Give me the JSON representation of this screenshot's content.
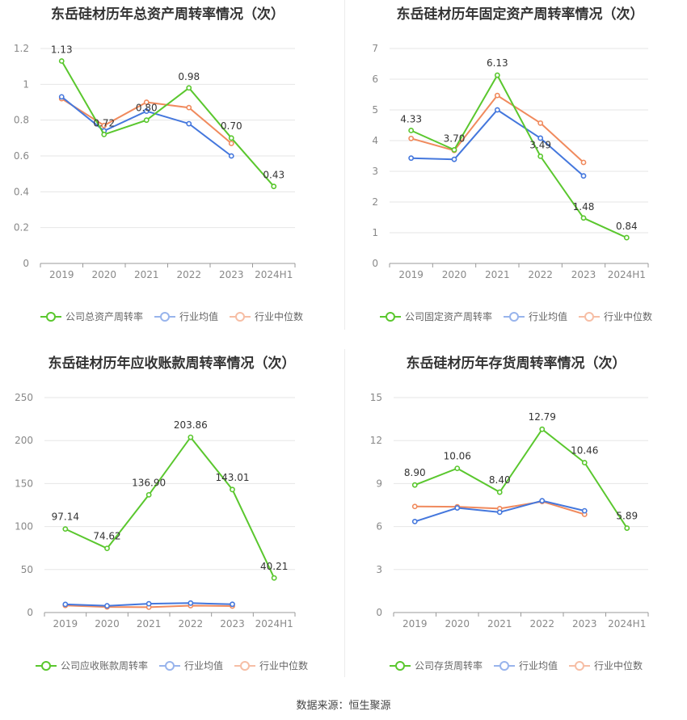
{
  "colors": {
    "company": "#5ac72e",
    "industry_avg": "#4477dd",
    "industry_median": "#f08a5d",
    "grid": "#e6e6e6",
    "axis_text": "#888888",
    "label_text": "#333333"
  },
  "source": "数据来源：恒生聚源",
  "panels": [
    {
      "title": "东岳硅材历年总资产周转率情况（次）",
      "legend": [
        "公司总资产周转率",
        "行业均值",
        "行业中位数"
      ]
    },
    {
      "title": "东岳硅材历年固定资产周转率情况（次）",
      "legend": [
        "公司固定资产周转率",
        "行业均值",
        "行业中位数"
      ]
    },
    {
      "title": "东岳硅材历年应收账款周转率情况（次）",
      "legend": [
        "公司应收账款周转率",
        "行业均值",
        "行业中位数"
      ]
    },
    {
      "title": "东岳硅材历年存货周转率情况（次）",
      "legend": [
        "公司存货周转率",
        "行业均值",
        "行业中位数"
      ]
    }
  ],
  "chart_data": [
    {
      "type": "line",
      "title": "东岳硅材历年总资产周转率情况（次）",
      "categories": [
        "2019",
        "2020",
        "2021",
        "2022",
        "2023",
        "2024H1"
      ],
      "ylim": [
        0,
        1.2
      ],
      "yticks": [
        "0",
        "0.2",
        "0.4",
        "0.6",
        "0.8",
        "1",
        "1.2"
      ],
      "ytick_values": [
        0,
        0.2,
        0.4,
        0.6,
        0.8,
        1.0,
        1.2
      ],
      "grid": true,
      "legend_position": "bottom",
      "series": [
        {
          "name": "公司总资产周转率",
          "values": [
            1.13,
            0.72,
            0.8,
            0.98,
            0.7,
            0.43
          ],
          "labels": [
            "1.13",
            "0.72",
            "0.80",
            "0.98",
            "0.70",
            "0.43"
          ]
        },
        {
          "name": "行业均值",
          "values": [
            0.93,
            0.74,
            0.85,
            0.78,
            0.6,
            null
          ]
        },
        {
          "name": "行业中位数",
          "values": [
            0.92,
            0.77,
            0.9,
            0.87,
            0.67,
            null
          ]
        }
      ]
    },
    {
      "type": "line",
      "title": "东岳硅材历年固定资产周转率情况（次）",
      "categories": [
        "2019",
        "2020",
        "2021",
        "2022",
        "2023",
        "2024H1"
      ],
      "ylim": [
        0,
        7
      ],
      "yticks": [
        "0",
        "1",
        "2",
        "3",
        "4",
        "5",
        "6",
        "7"
      ],
      "ytick_values": [
        0,
        1,
        2,
        3,
        4,
        5,
        6,
        7
      ],
      "grid": true,
      "legend_position": "bottom",
      "series": [
        {
          "name": "公司固定资产周转率",
          "values": [
            4.33,
            3.7,
            6.13,
            3.49,
            1.48,
            0.84
          ],
          "labels": [
            "4.33",
            "3.70",
            "6.13",
            "3.49",
            "1.48",
            "0.84"
          ]
        },
        {
          "name": "行业均值",
          "values": [
            3.43,
            3.39,
            5.0,
            4.08,
            2.85,
            null
          ]
        },
        {
          "name": "行业中位数",
          "values": [
            4.07,
            3.68,
            5.47,
            4.57,
            3.29,
            null
          ]
        }
      ]
    },
    {
      "type": "line",
      "title": "东岳硅材历年应收账款周转率情况（次）",
      "categories": [
        "2019",
        "2020",
        "2021",
        "2022",
        "2023",
        "2024H1"
      ],
      "ylim": [
        0,
        250
      ],
      "yticks": [
        "0",
        "50",
        "100",
        "150",
        "200",
        "250"
      ],
      "ytick_values": [
        0,
        50,
        100,
        150,
        200,
        250
      ],
      "grid": true,
      "legend_position": "bottom",
      "series": [
        {
          "name": "公司应收账款周转率",
          "values": [
            97.14,
            74.62,
            136.9,
            203.86,
            143.01,
            40.21
          ],
          "labels": [
            "97.14",
            "74.62",
            "136.90",
            "203.86",
            "143.01",
            "40.21"
          ]
        },
        {
          "name": "行业均值",
          "values": [
            9.5,
            7.8,
            10.2,
            11.0,
            9.6,
            null
          ]
        },
        {
          "name": "行业中位数",
          "values": [
            8.2,
            6.5,
            6.2,
            8.0,
            7.5,
            null
          ]
        }
      ]
    },
    {
      "type": "line",
      "title": "东岳硅材历年存货周转率情况（次）",
      "categories": [
        "2019",
        "2020",
        "2021",
        "2022",
        "2023",
        "2024H1"
      ],
      "ylim": [
        0,
        15
      ],
      "yticks": [
        "0",
        "3",
        "6",
        "9",
        "12",
        "15"
      ],
      "ytick_values": [
        0,
        3,
        6,
        9,
        12,
        15
      ],
      "grid": true,
      "legend_position": "bottom",
      "series": [
        {
          "name": "公司存货周转率",
          "values": [
            8.9,
            10.06,
            8.4,
            12.79,
            10.46,
            5.89
          ],
          "labels": [
            "8.90",
            "10.06",
            "8.40",
            "12.79",
            "10.46",
            "5.89"
          ]
        },
        {
          "name": "行业均值",
          "values": [
            6.35,
            7.3,
            7.0,
            7.8,
            7.1,
            null
          ]
        },
        {
          "name": "行业中位数",
          "values": [
            7.4,
            7.38,
            7.25,
            7.75,
            6.85,
            null
          ]
        }
      ]
    }
  ]
}
